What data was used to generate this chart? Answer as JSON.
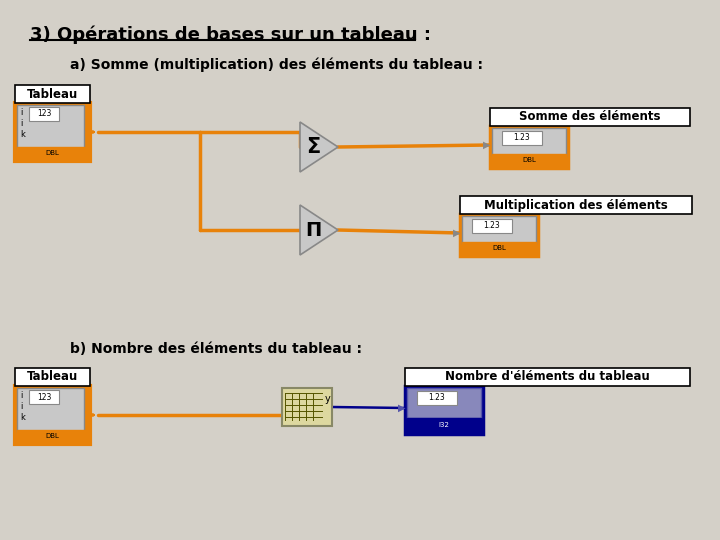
{
  "bg_color": "#d4d0c8",
  "title": "3) Opérations de bases sur un tableau :",
  "subtitle_a": "a) Somme (multiplication) des éléments du tableau :",
  "subtitle_b": "b) Nombre des éléments du tableau :",
  "orange": "#e8820a",
  "blue_dark": "#00008b",
  "light_gray": "#c8c8c8",
  "white": "#ffffff",
  "black": "#000000"
}
